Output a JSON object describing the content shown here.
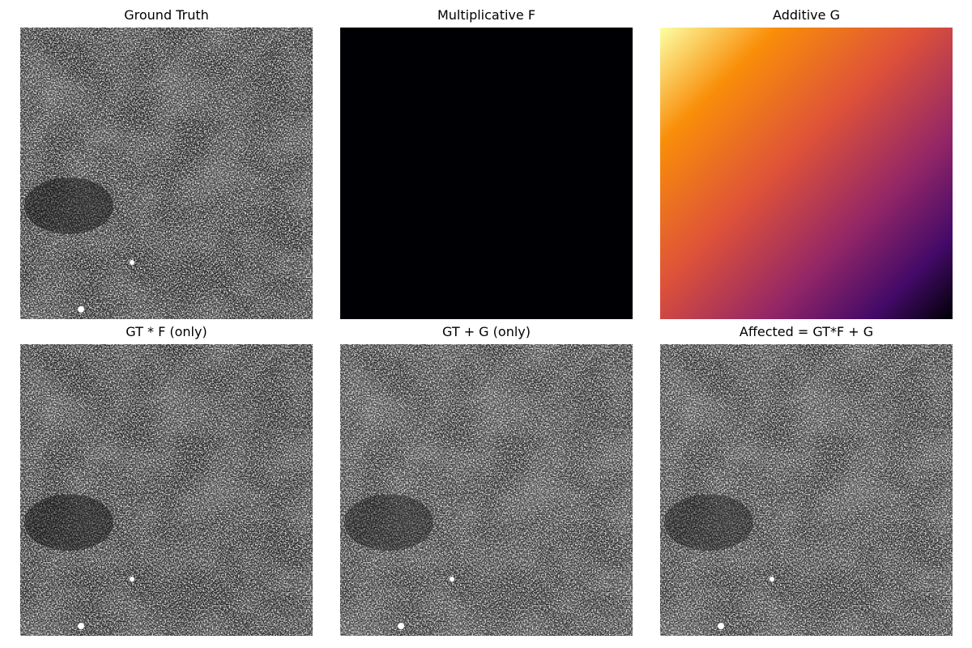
{
  "figure": {
    "panels": [
      {
        "title": "Ground Truth",
        "image": "starfield-grayscale"
      },
      {
        "title": "Multiplicative F",
        "image": "uniform-black-field"
      },
      {
        "title": "Additive G",
        "image": "inferno-gradient-field"
      },
      {
        "title": "GT * F (only)",
        "image": "starfield-grayscale"
      },
      {
        "title": "GT + G (only)",
        "image": "starfield-grayscale"
      },
      {
        "title": "Affected = GT*F + G",
        "image": "starfield-grayscale"
      }
    ]
  },
  "colors": {
    "background": "#ffffff",
    "title_text": "#000000",
    "field_black": "#000004",
    "inferno_light": "#fcffa4",
    "inferno_orange": "#f98e09",
    "inferno_red": "#dd513a",
    "inferno_magenta": "#932667",
    "inferno_purple": "#420a68",
    "inferno_dark": "#000004"
  }
}
